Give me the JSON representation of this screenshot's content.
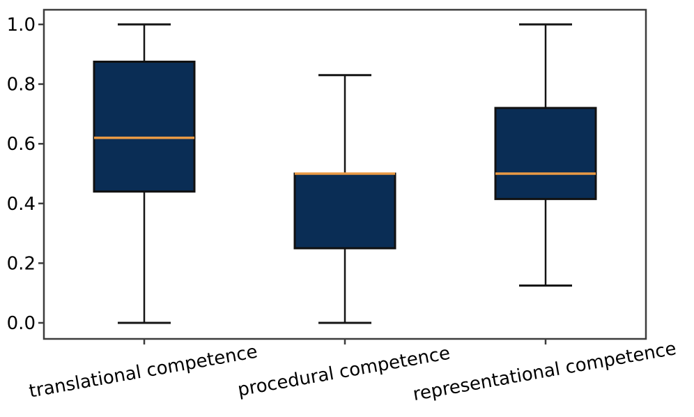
{
  "figure": {
    "background": "#ffffff"
  },
  "chart_data": {
    "type": "boxplot",
    "title": "",
    "xlabel": "",
    "ylabel": "",
    "grid": false,
    "legend": "none",
    "categories": [
      "translational competence",
      "procedural competence",
      "representational competence"
    ],
    "series": [
      {
        "name": "translational competence",
        "whisker_low": 0.0,
        "q1": 0.44,
        "median": 0.62,
        "q3": 0.875,
        "whisker_high": 1.0
      },
      {
        "name": "procedural competence",
        "whisker_low": 0.0,
        "q1": 0.25,
        "median": 0.5,
        "q3": 0.5,
        "whisker_high": 0.83
      },
      {
        "name": "representational competence",
        "whisker_low": 0.125,
        "q1": 0.415,
        "median": 0.5,
        "q3": 0.72,
        "whisker_high": 1.0
      }
    ],
    "y_axis": {
      "tick_labels": [
        "1.0",
        "0.8",
        "0.6",
        "0.4",
        "0.2",
        "0.0"
      ],
      "tick_values": [
        1.0,
        0.8,
        0.6,
        0.4,
        0.2,
        0.0
      ],
      "range_shown": [
        0.0,
        1.0
      ]
    },
    "x_axis": {
      "label_rotation_deg": 10
    },
    "colors": {
      "box_fill": "#0a2d55",
      "box_edge": "#111111",
      "median_line": "#ea9a45",
      "whisker": "#141414",
      "spine": "#3d3d3d",
      "text": "#000000"
    }
  }
}
